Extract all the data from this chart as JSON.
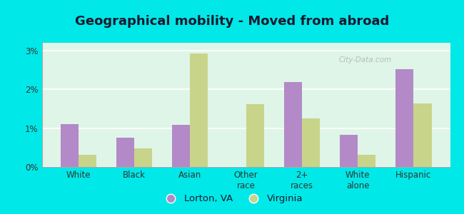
{
  "title": "Geographical mobility - Moved from abroad",
  "categories": [
    "White",
    "Black",
    "Asian",
    "Other\nrace",
    "2+\nraces",
    "White\nalone",
    "Hispanic"
  ],
  "lorton_values": [
    1.1,
    0.75,
    1.08,
    0.0,
    2.18,
    0.82,
    2.52
  ],
  "virginia_values": [
    0.32,
    0.48,
    2.92,
    1.62,
    1.25,
    0.32,
    1.63
  ],
  "lorton_color": "#b389c8",
  "virginia_color": "#c8d48a",
  "plot_bg_color": "#dff5e8",
  "outer_bg_color": "#00e8e8",
  "ylim": [
    0,
    3.2
  ],
  "yticks": [
    0,
    1,
    2,
    3
  ],
  "ytick_labels": [
    "0%",
    "1%",
    "2%",
    "3%"
  ],
  "legend_labels": [
    "Lorton, VA",
    "Virginia"
  ],
  "bar_width": 0.32,
  "title_fontsize": 13,
  "tick_fontsize": 8.5,
  "legend_fontsize": 9.5,
  "watermark": "City-Data.com"
}
